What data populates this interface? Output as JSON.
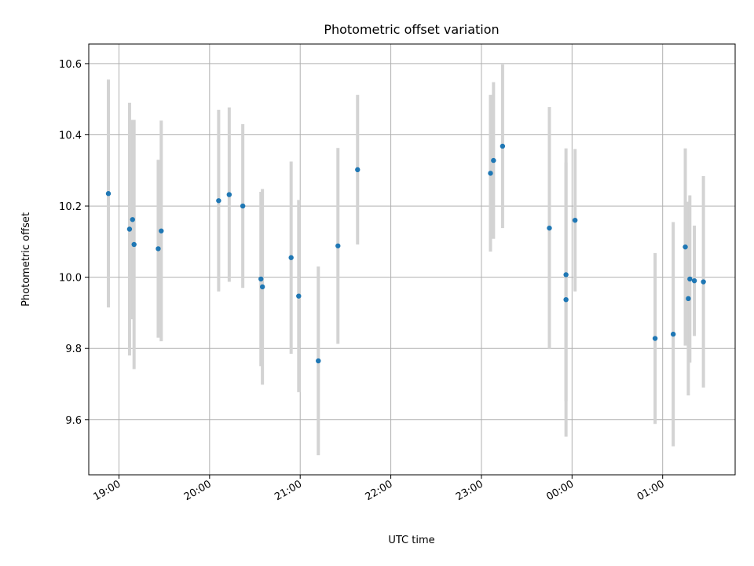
{
  "chart_data": {
    "type": "scatter",
    "title": "Photometric offset variation",
    "xlabel": "UTC time",
    "ylabel": "Photometric offset",
    "grid": true,
    "xlim": [
      "18:40",
      "01:48"
    ],
    "ylim": [
      9.445,
      10.655
    ],
    "x_tick_labels": [
      "19:00",
      "20:00",
      "21:00",
      "22:00",
      "23:00",
      "00:00",
      "01:00"
    ],
    "y_ticks": [
      9.6,
      9.8,
      10.0,
      10.2,
      10.4,
      10.6
    ],
    "y_tick_labels": [
      "9.6",
      "9.8",
      "10.0",
      "10.2",
      "10.4",
      "10.6"
    ],
    "series": [
      {
        "marker_color": "#1f77b4",
        "errorbar_color": "#d3d3d3",
        "points": [
          {
            "x": "18:53",
            "y": 10.235,
            "err": 0.32
          },
          {
            "x": "19:07",
            "y": 10.135,
            "err": 0.355
          },
          {
            "x": "19:09",
            "y": 10.162,
            "err": 0.28
          },
          {
            "x": "19:10",
            "y": 10.092,
            "err": 0.35
          },
          {
            "x": "19:26",
            "y": 10.08,
            "err": 0.25
          },
          {
            "x": "19:28",
            "y": 10.13,
            "err": 0.31
          },
          {
            "x": "20:06",
            "y": 10.215,
            "err": 0.255
          },
          {
            "x": "20:13",
            "y": 10.232,
            "err": 0.245
          },
          {
            "x": "20:22",
            "y": 10.2,
            "err": 0.23
          },
          {
            "x": "20:34",
            "y": 9.995,
            "err": 0.245
          },
          {
            "x": "20:35",
            "y": 9.973,
            "err": 0.275
          },
          {
            "x": "20:54",
            "y": 10.055,
            "err": 0.27
          },
          {
            "x": "20:59",
            "y": 9.947,
            "err": 0.27
          },
          {
            "x": "21:12",
            "y": 9.765,
            "err": 0.265
          },
          {
            "x": "21:25",
            "y": 10.088,
            "err": 0.275
          },
          {
            "x": "21:38",
            "y": 10.302,
            "err": 0.21
          },
          {
            "x": "23:06",
            "y": 10.292,
            "err": 0.22
          },
          {
            "x": "23:08",
            "y": 10.328,
            "err": 0.22
          },
          {
            "x": "23:14",
            "y": 10.368,
            "err": 0.23
          },
          {
            "x": "23:45",
            "y": 10.138,
            "err": 0.34
          },
          {
            "x": "23:56",
            "y": 10.007,
            "err": 0.355
          },
          {
            "x": "23:56",
            "y": 9.937,
            "err": 0.385
          },
          {
            "x": "00:02",
            "y": 10.16,
            "err": 0.2
          },
          {
            "x": "00:55",
            "y": 9.828,
            "err": 0.24
          },
          {
            "x": "01:07",
            "y": 9.84,
            "err": 0.315
          },
          {
            "x": "01:15",
            "y": 10.085,
            "err": 0.277
          },
          {
            "x": "01:17",
            "y": 9.94,
            "err": 0.272
          },
          {
            "x": "01:18",
            "y": 9.995,
            "err": 0.235
          },
          {
            "x": "01:21",
            "y": 9.99,
            "err": 0.155
          },
          {
            "x": "01:27",
            "y": 9.987,
            "err": 0.297
          }
        ]
      }
    ]
  }
}
